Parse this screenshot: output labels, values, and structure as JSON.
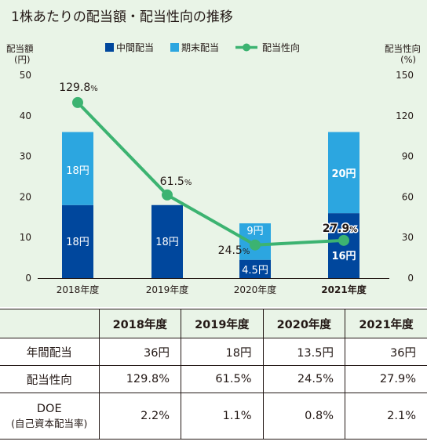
{
  "chart_data": {
    "type": "bar",
    "title": "1株あたりの配当額・配当性向の推移",
    "categories": [
      "2018年度",
      "2019年度",
      "2020年度",
      "2021年度"
    ],
    "y_left": {
      "label_line1": "配当額",
      "label_line2": "(円)",
      "ylim": [
        0,
        50
      ],
      "ticks": [
        "0",
        "10",
        "20",
        "30",
        "40",
        "50"
      ]
    },
    "y_right": {
      "label_line1": "配当性向",
      "label_line2": "(%)",
      "ylim": [
        0,
        150
      ],
      "ticks": [
        "0",
        "30",
        "60",
        "90",
        "120",
        "150"
      ]
    },
    "series": [
      {
        "name": "中間配当",
        "type": "bar",
        "color": "#00479d",
        "values": [
          18,
          18,
          4.5,
          16
        ],
        "labels": [
          "18円",
          "18円",
          "4.5円",
          "16円"
        ]
      },
      {
        "name": "期末配当",
        "type": "bar",
        "color": "#2ca6e0",
        "values": [
          18,
          0,
          9,
          20
        ],
        "labels": [
          "18円",
          "",
          "9円",
          "20円"
        ]
      },
      {
        "name": "配当性向",
        "type": "line",
        "axis": "right",
        "color": "#3cb371",
        "values": [
          129.8,
          61.5,
          24.5,
          27.9
        ],
        "labels": [
          "129.8",
          "61.5",
          "24.5",
          "27.9"
        ],
        "unit": "%"
      }
    ],
    "grid": false,
    "legend_position": "top"
  },
  "table": {
    "headers": [
      "",
      "2018年度",
      "2019年度",
      "2020年度",
      "2021年度"
    ],
    "rows": [
      {
        "label": "年間配当",
        "sublabel": "",
        "values": [
          "36円",
          "18円",
          "13.5円",
          "36円"
        ]
      },
      {
        "label": "配当性向",
        "sublabel": "",
        "values": [
          "129.8%",
          "61.5%",
          "24.5%",
          "27.9%"
        ]
      },
      {
        "label": "DOE",
        "sublabel": "(自己資本配当率)",
        "values": [
          "2.2%",
          "1.1%",
          "0.8%",
          "2.1%"
        ]
      }
    ]
  }
}
